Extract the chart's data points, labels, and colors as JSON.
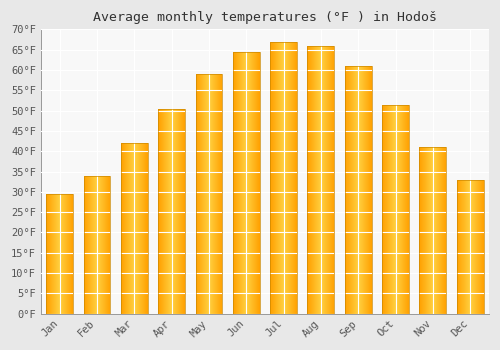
{
  "title": "Average monthly temperatures (°F ) in Hodoš",
  "months": [
    "Jan",
    "Feb",
    "Mar",
    "Apr",
    "May",
    "Jun",
    "Jul",
    "Aug",
    "Sep",
    "Oct",
    "Nov",
    "Dec"
  ],
  "values": [
    29.5,
    34.0,
    42.0,
    50.5,
    59.0,
    64.5,
    67.0,
    66.0,
    61.0,
    51.5,
    41.0,
    33.0
  ],
  "ylim": [
    0,
    70
  ],
  "background_color": "#e8e8e8",
  "plot_bg_color": "#f8f8f8",
  "grid_color": "#ffffff",
  "title_fontsize": 9.5,
  "tick_fontsize": 7.5,
  "bar_width": 0.72,
  "bar_color_center": "#FFD040",
  "bar_color_edge": "#FFA000",
  "bar_outline_color": "#CC8800",
  "n_gradient_steps": 80
}
